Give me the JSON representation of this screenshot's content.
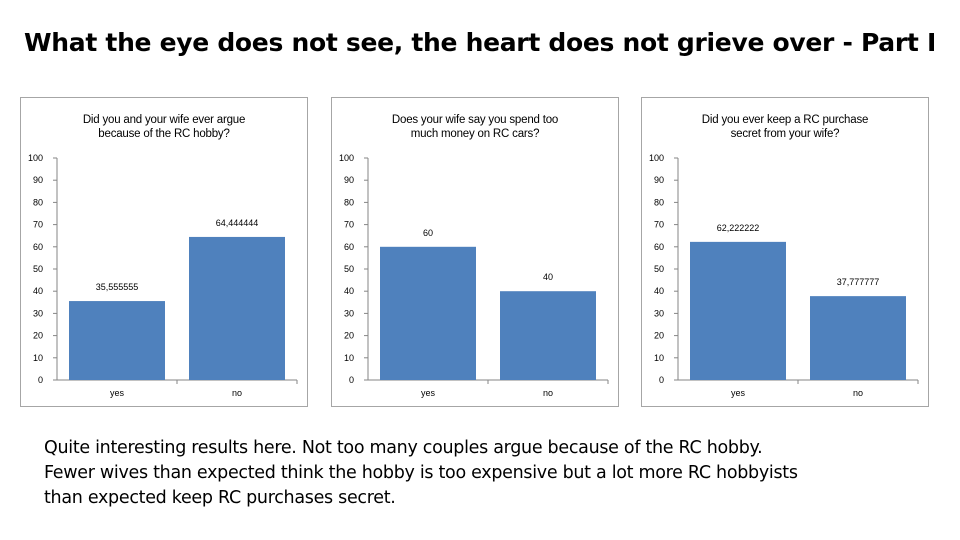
{
  "slide": {
    "title": "What the eye does not see, the heart does not grieve over - Part I",
    "caption": [
      "Quite interesting results here.  Not too many couples argue because of the RC hobby.",
      "Fewer wives than expected think the hobby is too expensive but a lot more RC hobbyists",
      "than expected keep RC purchases secret."
    ]
  },
  "colors": {
    "bar": "#4f81bd",
    "axis": "#868686",
    "border": "#a6a6a6"
  },
  "chart_data": [
    {
      "type": "bar",
      "title_lines": [
        "Did you and your wife ever argue",
        "because of the RC hobby?"
      ],
      "categories": [
        "yes",
        "no"
      ],
      "values": [
        35.555555,
        64.444444
      ],
      "data_labels": [
        "35,555555",
        "64,444444"
      ],
      "yticks": [
        "0",
        "10",
        "20",
        "30",
        "40",
        "50",
        "60",
        "70",
        "80",
        "90",
        "100"
      ],
      "ylim": [
        0,
        100
      ],
      "xlabel": "",
      "ylabel": "",
      "legend": "none"
    },
    {
      "type": "bar",
      "title_lines": [
        "Does your wife say you spend too",
        "much money on RC cars?"
      ],
      "categories": [
        "yes",
        "no"
      ],
      "values": [
        60,
        40
      ],
      "data_labels": [
        "60",
        "40"
      ],
      "yticks": [
        "0",
        "10",
        "20",
        "30",
        "40",
        "50",
        "60",
        "70",
        "80",
        "90",
        "100"
      ],
      "ylim": [
        0,
        100
      ],
      "xlabel": "",
      "ylabel": "",
      "legend": "none"
    },
    {
      "type": "bar",
      "title_lines": [
        "Did you ever keep a RC purchase",
        "secret from your wife?"
      ],
      "categories": [
        "yes",
        "no"
      ],
      "values": [
        62.222222,
        37.777777
      ],
      "data_labels": [
        "62,222222",
        "37,777777"
      ],
      "yticks": [
        "0",
        "10",
        "20",
        "30",
        "40",
        "50",
        "60",
        "70",
        "80",
        "90",
        "100"
      ],
      "ylim": [
        0,
        100
      ],
      "xlabel": "",
      "ylabel": "",
      "legend": "none"
    }
  ]
}
